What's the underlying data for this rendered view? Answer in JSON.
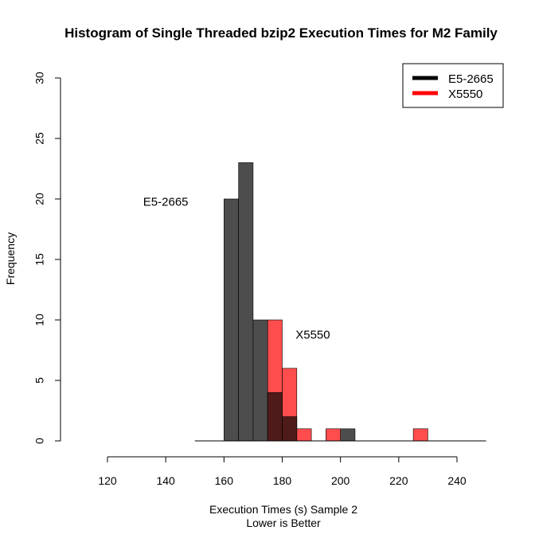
{
  "chart_data": {
    "type": "bar",
    "title": "Histogram of Single Threaded bzip2 Execution Times for M2 Family",
    "xlabel": "Execution Times (s) Sample 2",
    "xlabel_sub": "Lower is Better",
    "ylabel": "Frequency",
    "xlim": [
      120,
      240
    ],
    "ylim": [
      0,
      30
    ],
    "x_ticks": [
      "120",
      "140",
      "160",
      "180",
      "200",
      "220",
      "240"
    ],
    "y_ticks": [
      "0",
      "5",
      "10",
      "15",
      "20",
      "25",
      "30"
    ],
    "bin_width": 5,
    "baseline_range": [
      150,
      250
    ],
    "series": [
      {
        "name": "E5-2665",
        "color": "#4d4d4d",
        "bins": [
          {
            "start": 160,
            "count": 20
          },
          {
            "start": 165,
            "count": 23
          },
          {
            "start": 170,
            "count": 10
          },
          {
            "start": 175,
            "count": 4
          },
          {
            "start": 180,
            "count": 2
          },
          {
            "start": 200,
            "count": 1
          }
        ]
      },
      {
        "name": "X5550",
        "color": "#ff4d4d",
        "bins": [
          {
            "start": 175,
            "count": 10
          },
          {
            "start": 180,
            "count": 6
          },
          {
            "start": 185,
            "count": 1
          },
          {
            "start": 195,
            "count": 1
          },
          {
            "start": 225,
            "count": 1
          }
        ]
      }
    ],
    "overlap_color": "#4f1a1a",
    "annotations": [
      {
        "text": "E5-2665",
        "x": 140,
        "y": 19.7
      },
      {
        "text": "X5550",
        "x": 190.5,
        "y": 8.7
      }
    ],
    "legend": {
      "position": "top-right",
      "entries": [
        {
          "label": "E5-2665",
          "color": "#000000"
        },
        {
          "label": "X5550",
          "color": "#ff0000"
        }
      ]
    },
    "grid": false
  }
}
